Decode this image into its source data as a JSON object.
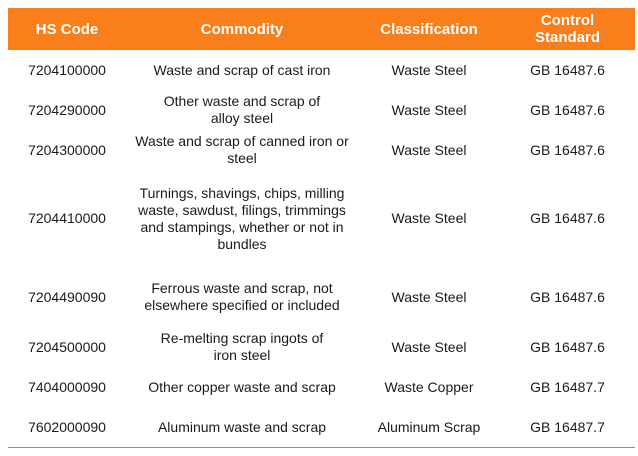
{
  "table": {
    "headers": [
      "HS Code",
      "Commodity",
      "Classification",
      "Control Standard"
    ],
    "rows": [
      {
        "code": "7204100000",
        "commodity": "Waste and scrap of cast iron",
        "classification": "Waste Steel",
        "standard": "GB 16487.6"
      },
      {
        "code": "7204290000",
        "commodity": "Other waste and scrap of alloy steel",
        "classification": "Waste Steel",
        "standard": "GB 16487.6"
      },
      {
        "code": "7204300000",
        "commodity": "Waste and scrap of canned iron or steel",
        "classification": "Waste Steel",
        "standard": "GB 16487.6"
      },
      {
        "code": "7204410000",
        "commodity": "Turnings, shavings, chips, milling waste, sawdust, filings, trimmings and stampings, whether or not in bundles",
        "classification": "Waste Steel",
        "standard": "GB 16487.6"
      },
      {
        "code": "7204490090",
        "commodity": "Ferrous waste and scrap, not elsewhere specified or included",
        "classification": "Waste Steel",
        "standard": "GB 16487.6"
      },
      {
        "code": "7204500000",
        "commodity": "Re-melting scrap ingots of iron steel",
        "classification": "Waste Steel",
        "standard": "GB 16487.6"
      },
      {
        "code": "7404000090",
        "commodity": "Other copper waste and scrap",
        "classification": "Waste Copper",
        "standard": "GB 16487.7"
      },
      {
        "code": "7602000090",
        "commodity": "Aluminum waste and scrap",
        "classification": "Aluminum Scrap",
        "standard": "GB 16487.7"
      }
    ]
  },
  "colors": {
    "header_bg": "#f87f1c",
    "header_text": "#ffffff"
  }
}
